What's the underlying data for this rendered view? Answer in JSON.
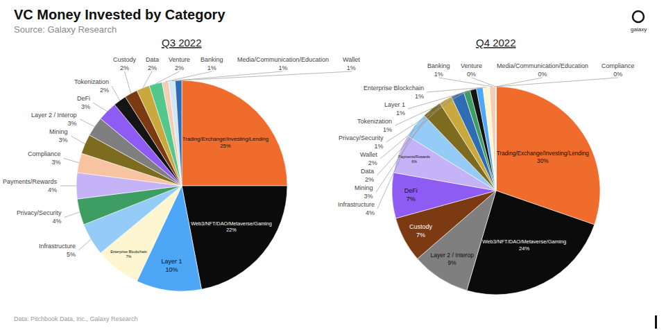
{
  "title": "VC Money Invested by Category",
  "subtitle": "Source: Galaxy Research",
  "footnote": "Data: Pitchbook Data, Inc., Galaxy Research",
  "logo": "galaxy",
  "chart_data": [
    {
      "type": "pie",
      "title": "Q3 2022",
      "data_labels": true,
      "categories": [
        "Trading/Exchange/Investing/Lending",
        "Web3/NFT/DAO/Metaverse/Gaming",
        "Layer 1",
        "Enterprise Blockchain",
        "Infrastructure",
        "Privacy/Security",
        "Payments/Rewards",
        "Compliance",
        "Mining",
        "Layer 2 / Interop",
        "DeFi",
        "Tokenization",
        "Custody",
        "Data",
        "Venture",
        "Banking",
        "Media/Communication/Education",
        "Wallet"
      ],
      "values": [
        25,
        22,
        10,
        7,
        5,
        4,
        4,
        3,
        3,
        3,
        3,
        2,
        2,
        2,
        2,
        1,
        1,
        1
      ],
      "value_labels": [
        "25%",
        "22%",
        "10%",
        "7%",
        "5%",
        "4%",
        "4%",
        "3%",
        "3%",
        "3%",
        "3%",
        "2%",
        "2%",
        "2%",
        "2%",
        "1%",
        "1%",
        "1%"
      ],
      "colors": [
        "#ef6c2c",
        "#0b0b0b",
        "#4ea6f7",
        "#fdf6d0",
        "#95cbf7",
        "#3e9d62",
        "#c5b3f7",
        "#f8c3a0",
        "#7d6b1f",
        "#7f7f7f",
        "#8e5cf2",
        "#141414",
        "#7b3a12",
        "#c9a93d",
        "#54c78d",
        "#f4cdb4",
        "#d3e7f7",
        "#2e6db4"
      ]
    },
    {
      "type": "pie",
      "title": "Q4 2022",
      "data_labels": true,
      "categories": [
        "Trading/Exchange/Investing/Lending",
        "Web3/NFT/DAO/Metaverse/Gaming",
        "Layer 2 / Interop",
        "Custody",
        "DeFi",
        "Payments/Rewards",
        "Infrastructure",
        "Mining",
        "Data",
        "Wallet",
        "Privacy/Security",
        "Tokenization",
        "Layer 1",
        "Enterprise Blockchain",
        "Banking",
        "Venture",
        "Media/Communication/Education",
        "Compliance"
      ],
      "values": [
        30,
        24,
        9,
        7,
        7,
        6,
        4,
        3,
        2,
        2,
        1,
        1,
        1,
        1,
        1,
        0,
        0,
        0
      ],
      "value_labels": [
        "30%",
        "24%",
        "9%",
        "7%",
        "7%",
        "6%",
        "4%",
        "3%",
        "2%",
        "2%",
        "1%",
        "1%",
        "1%",
        "1%",
        "1%",
        "0%",
        "0%",
        "0%"
      ],
      "colors": [
        "#ef6c2c",
        "#0b0b0b",
        "#7f7f7f",
        "#7b3a12",
        "#8e5cf2",
        "#c5b3f7",
        "#95cbf7",
        "#7d6b1f",
        "#c9a93d",
        "#2e6db4",
        "#3e9d62",
        "#141414",
        "#4ea6f7",
        "#fdf6d0",
        "#f4cdb4",
        "#54c78d",
        "#d3e7f7",
        "#f8c3a0"
      ]
    }
  ]
}
